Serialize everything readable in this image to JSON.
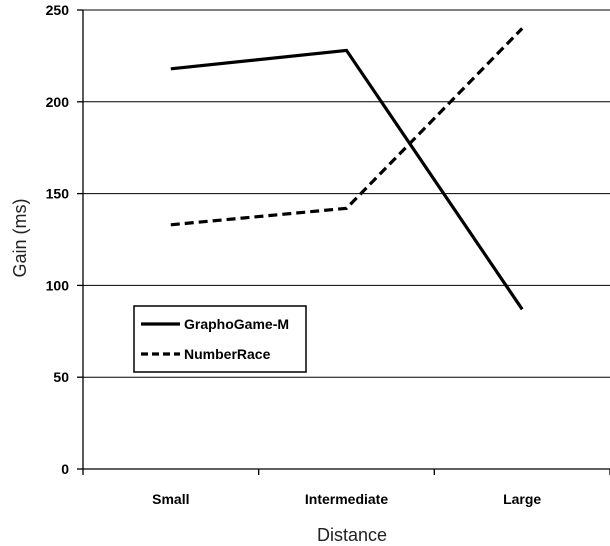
{
  "chart_data": {
    "type": "line",
    "categories": [
      "Small",
      "Intermediate",
      "Large"
    ],
    "series": [
      {
        "name": "GraphoGame-M",
        "values": [
          218,
          228,
          87
        ],
        "style": "solid",
        "color": "#000000"
      },
      {
        "name": "NumberRace",
        "values": [
          133,
          142,
          240
        ],
        "style": "dashed",
        "color": "#000000"
      }
    ],
    "xlabel": "Distance",
    "ylabel": "Gain (ms)",
    "ylim": [
      0,
      250
    ],
    "yticks": [
      0,
      50,
      100,
      150,
      200,
      250
    ],
    "grid": true,
    "legend_position": "left-middle"
  }
}
